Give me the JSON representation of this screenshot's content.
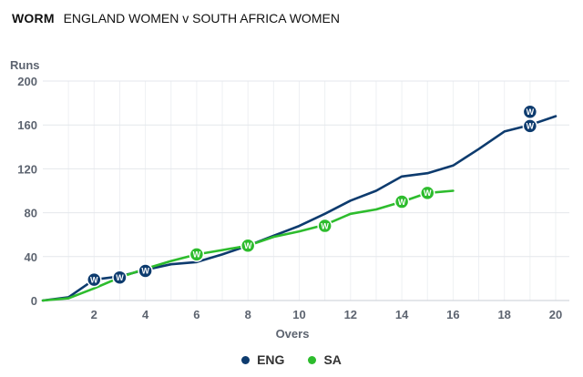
{
  "header": {
    "tag": "WORM",
    "match": "ENGLAND WOMEN v SOUTH AFRICA WOMEN"
  },
  "wicket_marker": "W",
  "chart_data": {
    "type": "line",
    "xlabel": "Overs",
    "ylabel": "Runs",
    "xlim": [
      0,
      20.5
    ],
    "ylim": [
      0,
      200
    ],
    "xticks": [
      2,
      4,
      6,
      8,
      10,
      12,
      14,
      16,
      18,
      20
    ],
    "yticks": [
      0,
      40,
      80,
      120,
      160,
      200
    ],
    "grid": true,
    "legend_position": "bottom",
    "series": [
      {
        "name": "ENG",
        "color": "#0d3b6e",
        "x": [
          0,
          1,
          2,
          3,
          4,
          5,
          6,
          7,
          8,
          9,
          10,
          11,
          12,
          13,
          14,
          15,
          16,
          17,
          18,
          19,
          20
        ],
        "y": [
          0,
          3,
          19,
          22,
          28,
          33,
          35,
          42,
          50,
          59,
          68,
          79,
          91,
          100,
          113,
          116,
          123,
          138,
          154,
          160,
          168
        ],
        "wickets": [
          {
            "x": 2,
            "y": 19
          },
          {
            "x": 3,
            "y": 21
          },
          {
            "x": 4,
            "y": 27
          },
          {
            "x": 19,
            "y": 172
          },
          {
            "x": 19,
            "y": 159
          }
        ]
      },
      {
        "name": "SA",
        "color": "#2dbc2d",
        "x": [
          0,
          1,
          2,
          3,
          4,
          5,
          6,
          7,
          8,
          9,
          10,
          11,
          12,
          13,
          14,
          15,
          16
        ],
        "y": [
          0,
          2,
          11,
          21,
          29,
          36,
          42,
          46,
          50,
          58,
          63,
          69,
          79,
          83,
          90,
          98,
          100
        ],
        "wickets": [
          {
            "x": 6,
            "y": 42
          },
          {
            "x": 8,
            "y": 50
          },
          {
            "x": 11,
            "y": 68
          },
          {
            "x": 14,
            "y": 90
          },
          {
            "x": 15,
            "y": 98
          }
        ]
      }
    ]
  }
}
